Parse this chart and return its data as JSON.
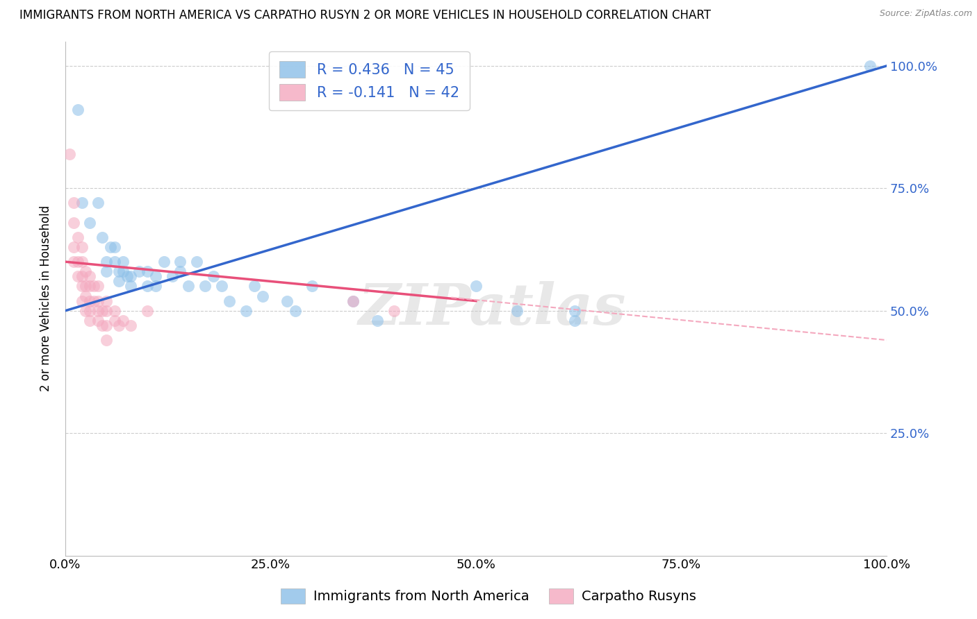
{
  "title": "IMMIGRANTS FROM NORTH AMERICA VS CARPATHO RUSYN 2 OR MORE VEHICLES IN HOUSEHOLD CORRELATION CHART",
  "source": "Source: ZipAtlas.com",
  "ylabel": "2 or more Vehicles in Household",
  "xlabel": "",
  "watermark": "ZIPatlas",
  "xlim": [
    0.0,
    1.0
  ],
  "ylim": [
    0.0,
    1.05
  ],
  "xtick_labels": [
    "0.0%",
    "25.0%",
    "50.0%",
    "75.0%",
    "100.0%"
  ],
  "xtick_vals": [
    0.0,
    0.25,
    0.5,
    0.75,
    1.0
  ],
  "ytick_labels_right": [
    "25.0%",
    "50.0%",
    "75.0%",
    "100.0%"
  ],
  "ytick_vals_right": [
    0.25,
    0.5,
    0.75,
    1.0
  ],
  "blue_R": 0.436,
  "blue_N": 45,
  "pink_R": -0.141,
  "pink_N": 42,
  "blue_color": "#8bbfe8",
  "pink_color": "#f4a8be",
  "blue_line_color": "#3366cc",
  "pink_line_color": "#e8507a",
  "blue_scatter": [
    [
      0.015,
      0.91
    ],
    [
      0.02,
      0.72
    ],
    [
      0.03,
      0.68
    ],
    [
      0.04,
      0.72
    ],
    [
      0.045,
      0.65
    ],
    [
      0.05,
      0.6
    ],
    [
      0.05,
      0.58
    ],
    [
      0.055,
      0.63
    ],
    [
      0.06,
      0.63
    ],
    [
      0.06,
      0.6
    ],
    [
      0.065,
      0.58
    ],
    [
      0.065,
      0.56
    ],
    [
      0.07,
      0.6
    ],
    [
      0.07,
      0.58
    ],
    [
      0.075,
      0.57
    ],
    [
      0.08,
      0.57
    ],
    [
      0.08,
      0.55
    ],
    [
      0.09,
      0.58
    ],
    [
      0.1,
      0.55
    ],
    [
      0.1,
      0.58
    ],
    [
      0.11,
      0.57
    ],
    [
      0.11,
      0.55
    ],
    [
      0.12,
      0.6
    ],
    [
      0.13,
      0.57
    ],
    [
      0.14,
      0.6
    ],
    [
      0.14,
      0.58
    ],
    [
      0.15,
      0.55
    ],
    [
      0.16,
      0.6
    ],
    [
      0.17,
      0.55
    ],
    [
      0.18,
      0.57
    ],
    [
      0.19,
      0.55
    ],
    [
      0.2,
      0.52
    ],
    [
      0.22,
      0.5
    ],
    [
      0.23,
      0.55
    ],
    [
      0.24,
      0.53
    ],
    [
      0.27,
      0.52
    ],
    [
      0.28,
      0.5
    ],
    [
      0.3,
      0.55
    ],
    [
      0.35,
      0.52
    ],
    [
      0.38,
      0.48
    ],
    [
      0.5,
      0.55
    ],
    [
      0.55,
      0.5
    ],
    [
      0.62,
      0.48
    ],
    [
      0.62,
      0.5
    ],
    [
      0.98,
      1.0
    ]
  ],
  "pink_scatter": [
    [
      0.005,
      0.82
    ],
    [
      0.01,
      0.72
    ],
    [
      0.01,
      0.68
    ],
    [
      0.01,
      0.63
    ],
    [
      0.01,
      0.6
    ],
    [
      0.015,
      0.65
    ],
    [
      0.015,
      0.6
    ],
    [
      0.015,
      0.57
    ],
    [
      0.02,
      0.63
    ],
    [
      0.02,
      0.6
    ],
    [
      0.02,
      0.57
    ],
    [
      0.02,
      0.55
    ],
    [
      0.02,
      0.52
    ],
    [
      0.025,
      0.58
    ],
    [
      0.025,
      0.55
    ],
    [
      0.025,
      0.53
    ],
    [
      0.025,
      0.5
    ],
    [
      0.03,
      0.57
    ],
    [
      0.03,
      0.55
    ],
    [
      0.03,
      0.52
    ],
    [
      0.03,
      0.5
    ],
    [
      0.03,
      0.48
    ],
    [
      0.035,
      0.55
    ],
    [
      0.035,
      0.52
    ],
    [
      0.04,
      0.55
    ],
    [
      0.04,
      0.52
    ],
    [
      0.04,
      0.5
    ],
    [
      0.04,
      0.48
    ],
    [
      0.045,
      0.5
    ],
    [
      0.045,
      0.47
    ],
    [
      0.05,
      0.52
    ],
    [
      0.05,
      0.5
    ],
    [
      0.05,
      0.47
    ],
    [
      0.05,
      0.44
    ],
    [
      0.06,
      0.5
    ],
    [
      0.06,
      0.48
    ],
    [
      0.065,
      0.47
    ],
    [
      0.07,
      0.48
    ],
    [
      0.08,
      0.47
    ],
    [
      0.1,
      0.5
    ],
    [
      0.35,
      0.52
    ],
    [
      0.4,
      0.5
    ]
  ],
  "legend_fontsize": 15,
  "title_fontsize": 12,
  "axis_label_fontsize": 12,
  "tick_fontsize": 13,
  "grid_color": "#cccccc",
  "background_color": "#ffffff"
}
